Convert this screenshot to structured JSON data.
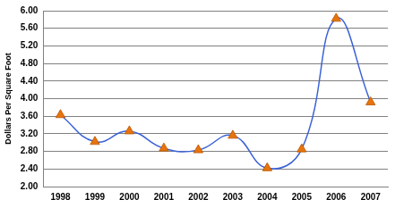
{
  "chart_data": {
    "type": "line",
    "y_label": "Dollars Per Square Foot",
    "categories": [
      "1998",
      "1999",
      "2000",
      "2001",
      "2002",
      "2003",
      "2004",
      "2005",
      "2006",
      "2007"
    ],
    "series": [
      {
        "name": "Dollars Per Square Foot",
        "color": "#3a62d6",
        "marker": "triangle",
        "line_style": "smooth",
        "values": [
          3.63,
          3.02,
          3.26,
          2.87,
          2.83,
          3.16,
          2.42,
          2.85,
          5.82,
          3.92
        ]
      }
    ],
    "ylim": [
      2,
      6
    ],
    "yticks": [
      {
        "value": 2,
        "label": "2.00"
      },
      {
        "value": 2.4,
        "label": "2.40"
      },
      {
        "value": 2.8,
        "label": "2.80"
      },
      {
        "value": 3.2,
        "label": "3.20"
      },
      {
        "value": 3.6,
        "label": "3.60"
      },
      {
        "value": 4,
        "label": "4.00"
      },
      {
        "value": 4.4,
        "label": "4.40"
      },
      {
        "value": 4.8,
        "label": "4.80"
      },
      {
        "value": 5.2,
        "label": "5.20"
      },
      {
        "value": 5.6,
        "label": "5.60"
      },
      {
        "value": 6,
        "label": "6.00"
      }
    ],
    "grid": true
  }
}
